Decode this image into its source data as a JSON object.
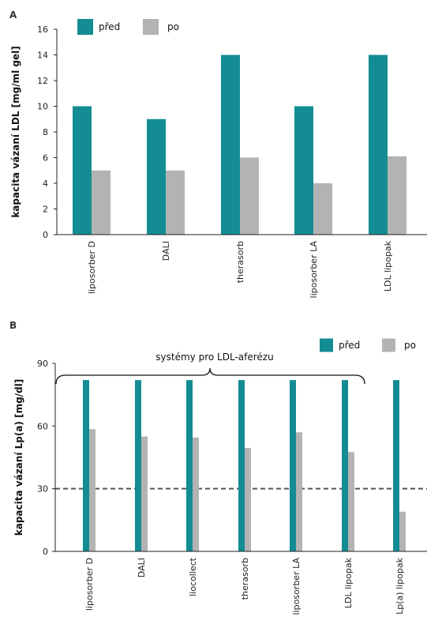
{
  "colors": {
    "pred": "#138c93",
    "po": "#b3b3b3",
    "axis": "#222222",
    "ref": "#555555"
  },
  "chart_data": [
    {
      "panel": "A",
      "type": "bar",
      "ylabel": "kapacita vázaní LDL [mg/ml gel]",
      "ylim": [
        0,
        16
      ],
      "yticks": [
        0,
        2,
        4,
        6,
        8,
        10,
        12,
        14,
        16
      ],
      "legend": "top-left",
      "categories": [
        "liposorber D",
        "DALI",
        "therasorb",
        "liposorber LA",
        "LDL lipopak"
      ],
      "series": [
        {
          "name": "před",
          "values": [
            10,
            9,
            14,
            10,
            14
          ]
        },
        {
          "name": "po",
          "values": [
            5,
            5,
            6,
            4,
            6.1
          ]
        }
      ]
    },
    {
      "panel": "B",
      "type": "bar",
      "ylabel": "kapacita vázaní Lp(a) [mg/dl]",
      "ylim": [
        0,
        90
      ],
      "yticks": [
        0,
        30,
        60,
        90
      ],
      "legend": "top-right",
      "reference_line": 30,
      "bracket_label": "systémy pro LDL-aferézu",
      "categories": [
        "liposorber D",
        "DALI",
        "liocollect",
        "therasorb",
        "liposorber LA",
        "LDL lipopak",
        "Lp(a) lipopak"
      ],
      "series": [
        {
          "name": "před",
          "values": [
            82,
            82,
            82,
            82,
            82,
            82,
            82
          ]
        },
        {
          "name": "po",
          "values": [
            58.5,
            55,
            54.5,
            49.5,
            57,
            47.5,
            19
          ]
        }
      ]
    }
  ]
}
